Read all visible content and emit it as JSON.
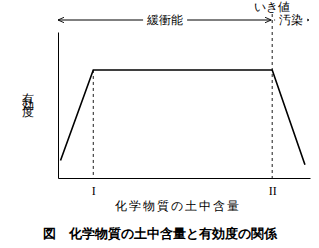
{
  "chart_data": {
    "type": "line",
    "title": "図　化学物質の土中含量と有効度の関係",
    "x_label": "化学物質の土中含量",
    "y_label": "有効度",
    "x": [
      1,
      14,
      85,
      98
    ],
    "values": [
      12,
      74,
      74,
      9
    ],
    "color": "#000000",
    "line_style": "solid",
    "xlim": [
      0,
      100
    ],
    "xticks": [
      {
        "value": 14,
        "label": "I"
      },
      {
        "value": 85,
        "label": "II"
      }
    ],
    "ylim": [
      0,
      100
    ],
    "yticks": [],
    "tick_labels": "x",
    "grid": false,
    "annotations": [
      {
        "text": "緩衝能",
        "x": [
          0,
          85
        ]
      },
      {
        "text": "汚染",
        "x": [
          85,
          100
        ]
      },
      {
        "text": "いき値",
        "x": 85
      }
    ]
  }
}
